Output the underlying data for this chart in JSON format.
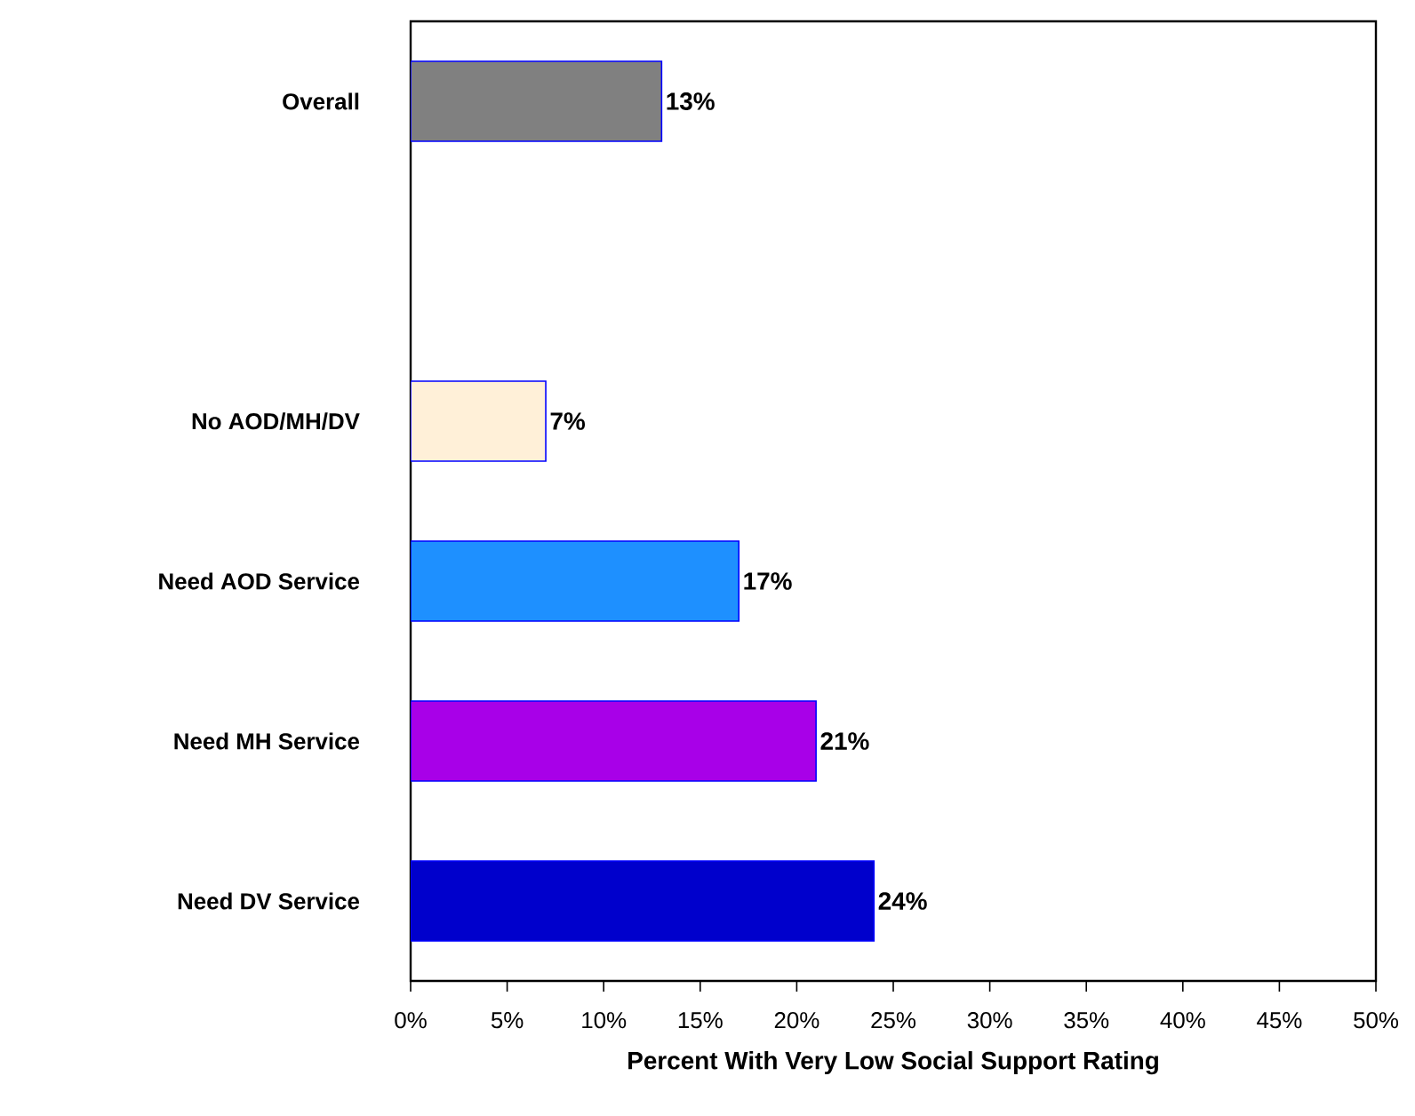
{
  "chart_data": {
    "type": "bar",
    "orientation": "horizontal",
    "xlabel": "Percent With Very Low Social Support Rating",
    "categories": [
      "Overall",
      null,
      "No AOD/MH/DV",
      "Need AOD Service",
      "Need MH Service",
      "Need DV Service"
    ],
    "values": [
      13,
      null,
      7,
      17,
      21,
      24
    ],
    "value_labels": [
      "13%",
      null,
      "7%",
      "17%",
      "21%",
      "24%"
    ],
    "colors": [
      "#808080",
      "#ffffff",
      "#fff0d8",
      "#1e90ff",
      "#a800e8",
      "#0000cc"
    ],
    "xlim": [
      0,
      50
    ],
    "xticks": [
      {
        "value": 0,
        "label": "0%"
      },
      {
        "value": 5,
        "label": "5%"
      },
      {
        "value": 10,
        "label": "10%"
      },
      {
        "value": 15,
        "label": "15%"
      },
      {
        "value": 20,
        "label": "20%"
      },
      {
        "value": 25,
        "label": "25%"
      },
      {
        "value": 30,
        "label": "30%"
      },
      {
        "value": 35,
        "label": "35%"
      },
      {
        "value": 40,
        "label": "40%"
      },
      {
        "value": 45,
        "label": "45%"
      },
      {
        "value": 50,
        "label": "50%"
      }
    ],
    "grid": false
  }
}
